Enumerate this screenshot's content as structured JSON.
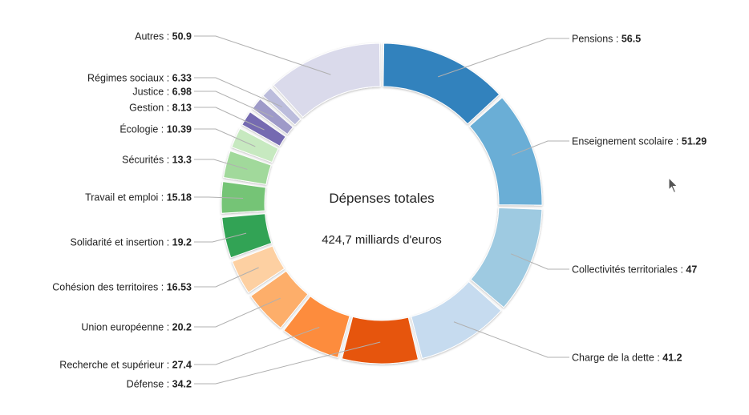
{
  "chart_data": {
    "type": "pie",
    "variant": "donut",
    "center_title": "Dépenses totales",
    "center_subtitle": "424,7 milliards d'euros",
    "separator": " : ",
    "slices": [
      {
        "label": "Pensions",
        "value": 56.5,
        "value_text": "56.5",
        "color": "#3282bd",
        "side": "right"
      },
      {
        "label": "Enseignement scolaire",
        "value": 51.29,
        "value_text": "51.29",
        "color": "#6aaed6",
        "side": "right"
      },
      {
        "label": "Collectivités territoriales",
        "value": 47,
        "value_text": "47",
        "color": "#9ecae1",
        "side": "right"
      },
      {
        "label": "Charge de la dette",
        "value": 41.2,
        "value_text": "41.2",
        "color": "#c6dbef",
        "side": "right"
      },
      {
        "label": "Défense",
        "value": 34.2,
        "value_text": "34.2",
        "color": "#e6550d",
        "side": "left"
      },
      {
        "label": "Recherche et supérieur",
        "value": 27.4,
        "value_text": "27.4",
        "color": "#fd8c3c",
        "side": "left"
      },
      {
        "label": "Union européenne",
        "value": 20.2,
        "value_text": "20.2",
        "color": "#fdae6b",
        "side": "left"
      },
      {
        "label": "Cohésion des territoires",
        "value": 16.53,
        "value_text": "16.53",
        "color": "#fdd0a2",
        "side": "left"
      },
      {
        "label": "Solidarité et insertion",
        "value": 19.2,
        "value_text": "19.2",
        "color": "#30a354",
        "side": "left"
      },
      {
        "label": "Travail et emploi",
        "value": 15.18,
        "value_text": "15.18",
        "color": "#74c476",
        "side": "left"
      },
      {
        "label": "Sécurités",
        "value": 13.3,
        "value_text": "13.3",
        "color": "#a1d99b",
        "side": "left"
      },
      {
        "label": "Écologie",
        "value": 10.39,
        "value_text": "10.39",
        "color": "#c7e9c0",
        "side": "left"
      },
      {
        "label": "Gestion",
        "value": 8.13,
        "value_text": "8.13",
        "color": "#756bb1",
        "side": "left"
      },
      {
        "label": "Justice",
        "value": 6.98,
        "value_text": "6.98",
        "color": "#9e9ac8",
        "side": "left"
      },
      {
        "label": "Régimes sociaux",
        "value": 6.33,
        "value_text": "6.33",
        "color": "#bcbddc",
        "side": "left"
      },
      {
        "label": "Autres",
        "value": 50.9,
        "value_text": "50.9",
        "color": "#dadaeb",
        "side": "left"
      }
    ]
  }
}
